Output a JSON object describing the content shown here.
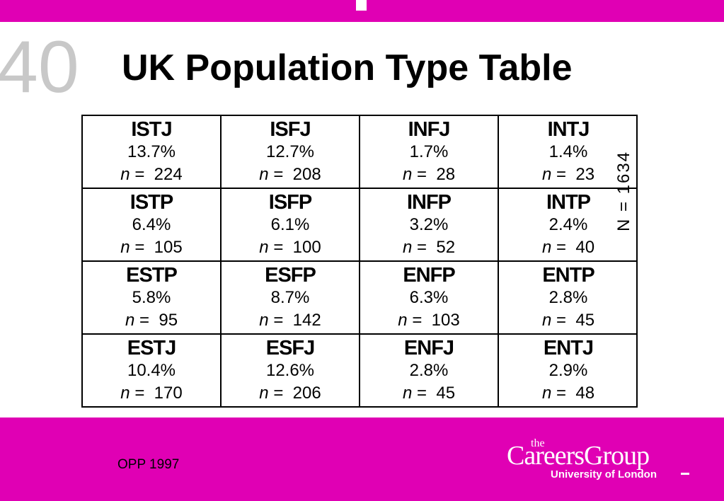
{
  "slide_number": "40",
  "header": {
    "title": "UK Population Type Table"
  },
  "table": {
    "n_symbol": "n",
    "equals": "=",
    "side_label": "N = 1634",
    "rows": [
      [
        {
          "type": "ISTJ",
          "percent": "13.7%",
          "n": 224
        },
        {
          "type": "ISFJ",
          "percent": "12.7%",
          "n": 208
        },
        {
          "type": "INFJ",
          "percent": "1.7%",
          "n": 28
        },
        {
          "type": "INTJ",
          "percent": "1.4%",
          "n": 23
        }
      ],
      [
        {
          "type": "ISTP",
          "percent": "6.4%",
          "n": 105
        },
        {
          "type": "ISFP",
          "percent": "6.1%",
          "n": 100
        },
        {
          "type": "INFP",
          "percent": "3.2%",
          "n": 52
        },
        {
          "type": "INTP",
          "percent": "2.4%",
          "n": 40
        }
      ],
      [
        {
          "type": "ESTP",
          "percent": "5.8%",
          "n": 95
        },
        {
          "type": "ESFP",
          "percent": "8.7%",
          "n": 142
        },
        {
          "type": "ENFP",
          "percent": "6.3%",
          "n": 103
        },
        {
          "type": "ENTP",
          "percent": "2.8%",
          "n": 45
        }
      ],
      [
        {
          "type": "ESTJ",
          "percent": "10.4%",
          "n": 170
        },
        {
          "type": "ESFJ",
          "percent": "12.6%",
          "n": 206
        },
        {
          "type": "ENFJ",
          "percent": "2.8%",
          "n": 45
        },
        {
          "type": "ENTJ",
          "percent": "2.9%",
          "n": 48
        }
      ]
    ]
  },
  "footer": {
    "source": "OPP 1997",
    "logo": {
      "small": "the",
      "name": "CareersGroup",
      "tagline": "University of London"
    }
  }
}
